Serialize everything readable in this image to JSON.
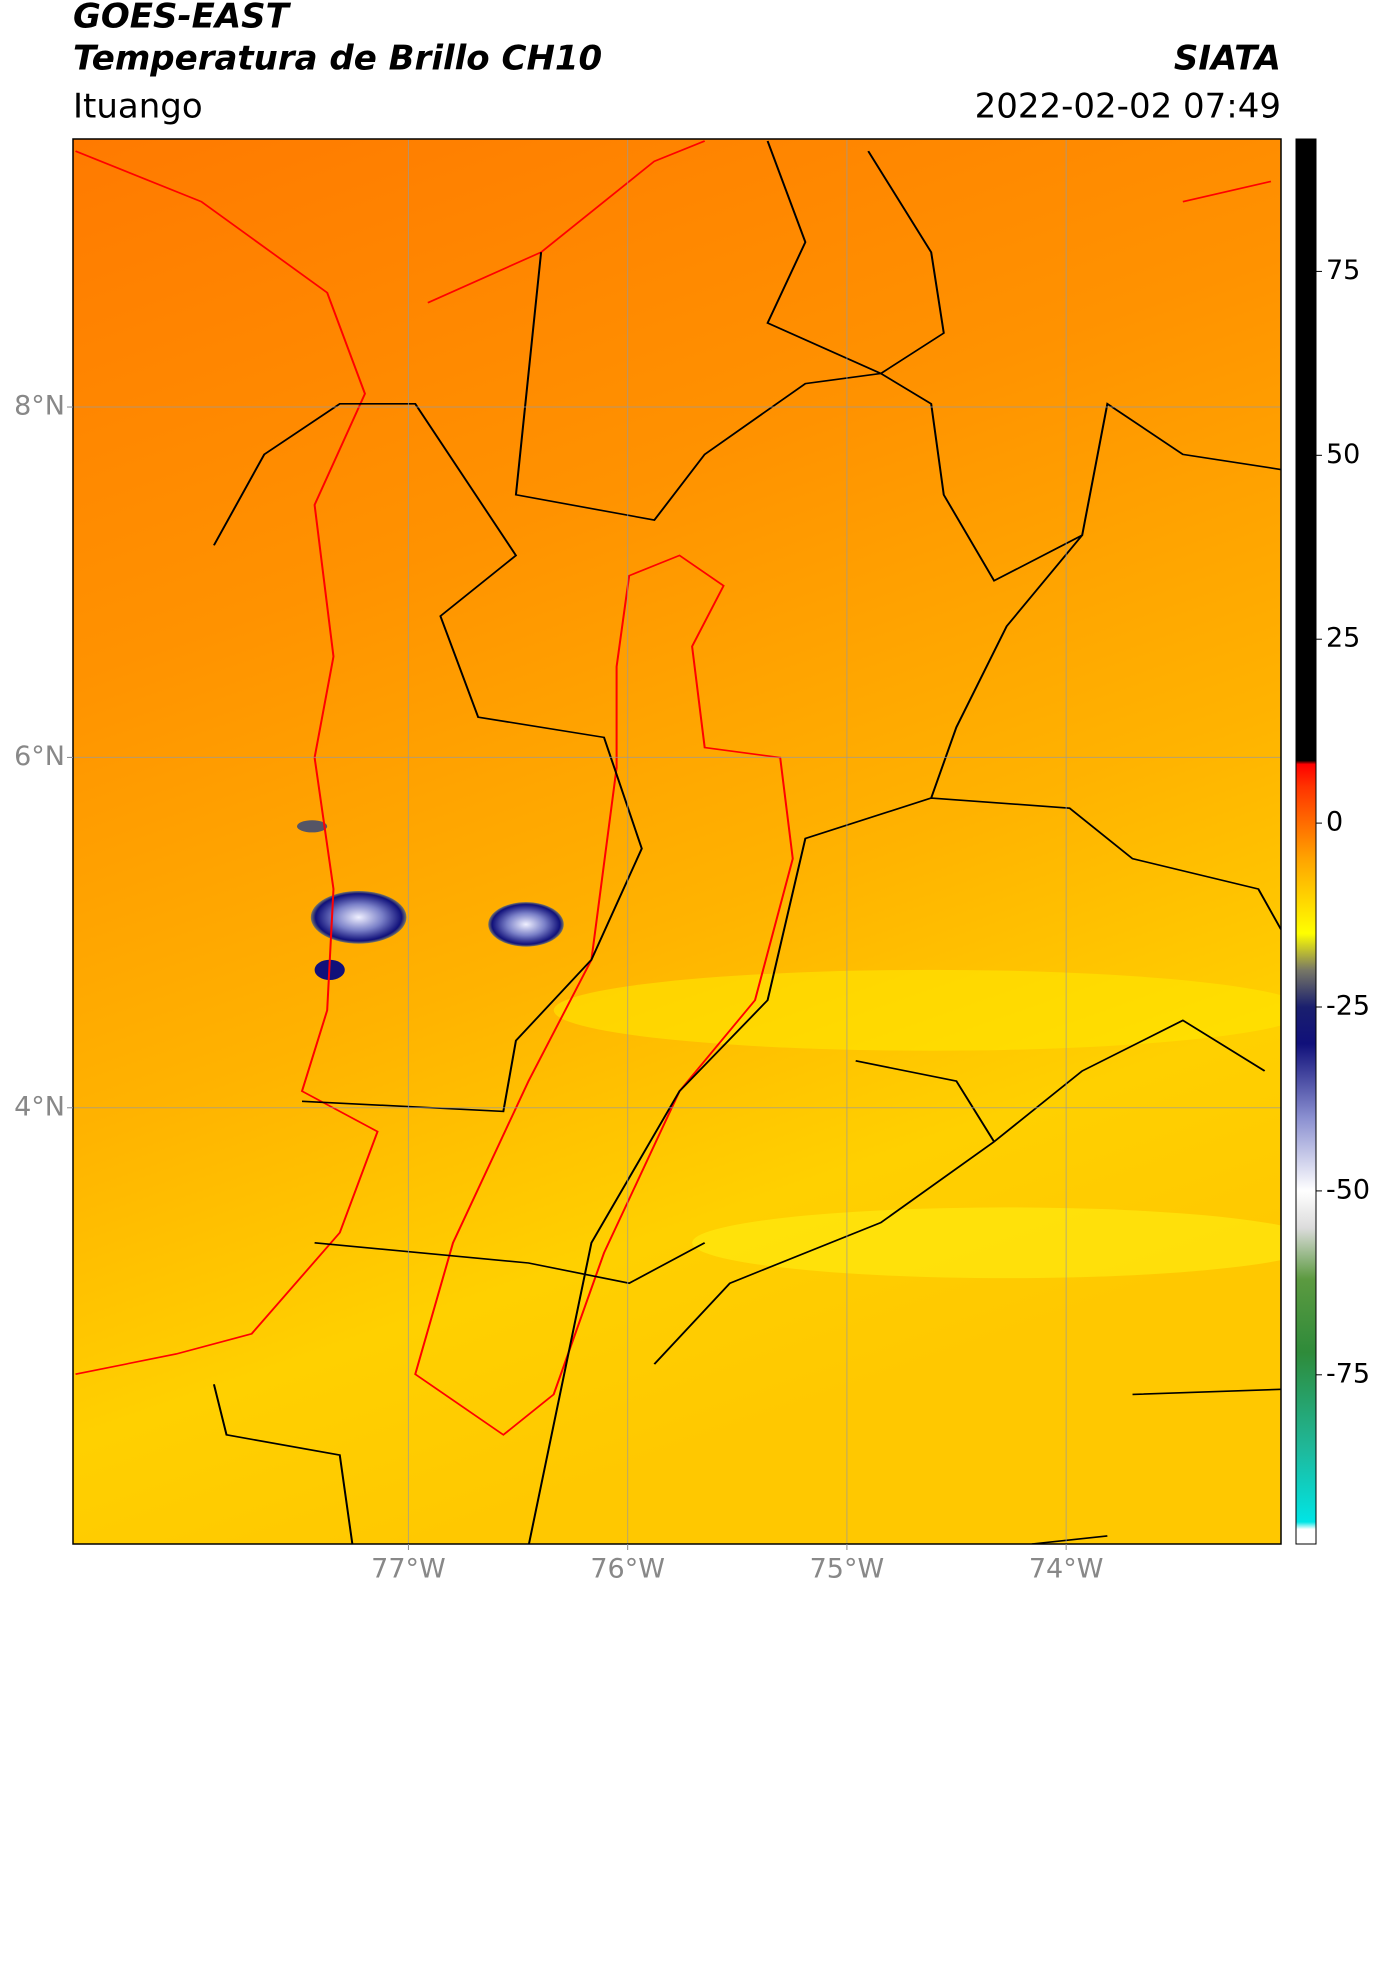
{
  "chart_data": {
    "type": "map",
    "title": "GOES-EAST",
    "subtitle": "Temperatura de Brillo CH10",
    "source": "SIATA",
    "location": "Ituango",
    "datetime": "2022-02-02 07:49",
    "xlim": [
      -78.53,
      -73.02
    ],
    "ylim": [
      1.51,
      9.53
    ],
    "xticks": [
      {
        "value": -77,
        "label": "77°W"
      },
      {
        "value": -76,
        "label": "76°W"
      },
      {
        "value": -75,
        "label": "75°W"
      },
      {
        "value": -74,
        "label": "74°W"
      }
    ],
    "yticks": [
      {
        "value": 8,
        "label": "8°N"
      },
      {
        "value": 6,
        "label": "6°N"
      },
      {
        "value": 4,
        "label": "4°N"
      }
    ],
    "grid": true,
    "colorbar_lim": [
      -98,
      93
    ],
    "colorbar_ticks": [
      75,
      50,
      25,
      0,
      -25,
      -50,
      -75
    ],
    "colormap": [
      {
        "value": -98,
        "color": "#ffffff"
      },
      {
        "value": -96,
        "color": "#ffffff"
      },
      {
        "value": -95,
        "color": "#00e5e5"
      },
      {
        "value": -85,
        "color": "#1fb89a"
      },
      {
        "value": -72,
        "color": "#2e8b3a"
      },
      {
        "value": -62,
        "color": "#5c9a40"
      },
      {
        "value": -55,
        "color": "#dcdcdc"
      },
      {
        "value": -50,
        "color": "#ffffff"
      },
      {
        "value": -40,
        "color": "#8a8fd0"
      },
      {
        "value": -30,
        "color": "#10107a"
      },
      {
        "value": -25,
        "color": "#1a1f6e"
      },
      {
        "value": -20,
        "color": "#777766"
      },
      {
        "value": -15,
        "color": "#ffff00"
      },
      {
        "value": -5,
        "color": "#ffa500"
      },
      {
        "value": 5,
        "color": "#ff3300"
      },
      {
        "value": 8,
        "color": "#ff0000"
      },
      {
        "value": 8.5,
        "color": "#000000"
      },
      {
        "value": 93,
        "color": "#000000"
      }
    ]
  }
}
